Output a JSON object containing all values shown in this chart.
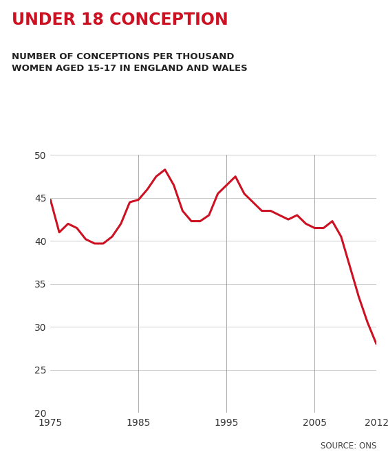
{
  "title_main": "UNDER 18 CONCEPTION",
  "title_sub": "NUMBER OF CONCEPTIONS PER THOUSAND\nWOMEN AGED 15-17 IN ENGLAND AND WALES",
  "source": "SOURCE: ONS",
  "line_color": "#cc1122",
  "background_color": "#ffffff",
  "grid_color": "#cccccc",
  "title_color": "#cc1122",
  "subtitle_color": "#222222",
  "years": [
    1975,
    1976,
    1977,
    1978,
    1979,
    1980,
    1981,
    1982,
    1983,
    1984,
    1985,
    1986,
    1987,
    1988,
    1989,
    1990,
    1991,
    1992,
    1993,
    1994,
    1995,
    1996,
    1997,
    1998,
    1999,
    2000,
    2001,
    2002,
    2003,
    2004,
    2005,
    2006,
    2007,
    2008,
    2009,
    2010,
    2011,
    2012
  ],
  "values": [
    44.8,
    41.0,
    42.0,
    41.5,
    40.2,
    39.7,
    39.7,
    40.5,
    42.0,
    44.5,
    44.8,
    46.0,
    47.5,
    48.3,
    46.5,
    43.5,
    42.3,
    42.3,
    43.0,
    45.5,
    46.5,
    47.5,
    45.5,
    44.5,
    43.5,
    43.5,
    43.0,
    42.5,
    43.0,
    42.0,
    41.5,
    41.5,
    42.3,
    40.5,
    37.0,
    33.5,
    30.5,
    28.0
  ],
  "ylim": [
    20,
    50
  ],
  "yticks": [
    20,
    25,
    30,
    35,
    40,
    45,
    50
  ],
  "xticks": [
    1975,
    1985,
    1995,
    2005,
    2012
  ],
  "xmin": 1975,
  "xmax": 2012,
  "line_width": 2.2,
  "vline_years": [
    1985,
    1995,
    2005
  ],
  "vline_color": "#aaaaaa",
  "title_fontsize": 17,
  "subtitle_fontsize": 9.5,
  "tick_fontsize": 10
}
